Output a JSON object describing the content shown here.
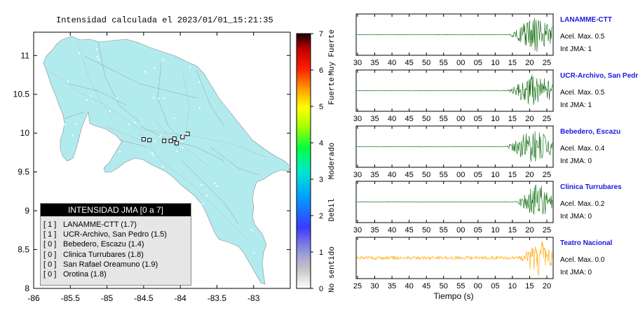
{
  "title": "Intensidad calculada el 2023/01/01_15:21:35",
  "map": {
    "x_ticks": [
      -86,
      -85.5,
      -85,
      -84.5,
      -84,
      -83.5,
      -83
    ],
    "y_ticks": [
      8,
      8.5,
      9,
      9.5,
      10,
      10.5,
      11
    ],
    "xlim": [
      -86,
      -82.5
    ],
    "ylim": [
      8,
      11.3
    ],
    "land_color": "#b1ebee",
    "station_markers": [
      [
        -84.5,
        9.92
      ],
      [
        -84.42,
        9.91
      ],
      [
        -84.13,
        9.9
      ],
      [
        -84.05,
        9.87
      ],
      [
        -83.97,
        9.95
      ],
      [
        -83.9,
        9.99
      ],
      [
        -84.08,
        9.93
      ],
      [
        -84.22,
        9.9
      ]
    ]
  },
  "legend": {
    "header": "INTENSIDAD JMA [0 a 7]",
    "items": [
      {
        "badge": "[ 1 ]",
        "text": "LANAMME-CTT (1.7)"
      },
      {
        "badge": "[ 1 ]",
        "text": "UCR-Archivo, San Pedro (1.5)"
      },
      {
        "badge": "[ 0 ]",
        "text": "Bebedero, Escazu (1.4)"
      },
      {
        "badge": "[ 0 ]",
        "text": "Clinica Turrubares (1.8)"
      },
      {
        "badge": "[ 0 ]",
        "text": "San Rafael Oreamuno (1.9)"
      },
      {
        "badge": "[ 0 ]",
        "text": "Orotina (1.8)"
      }
    ]
  },
  "colorbar": {
    "ticks": [
      "0",
      "1",
      "2",
      "3",
      "4",
      "5",
      "6",
      "7"
    ],
    "labels": [
      "No sentido",
      "Debil",
      "Moderado",
      "Fuerte",
      "Muy Fuerte"
    ]
  },
  "waveforms": {
    "xlabel": "Tiempo (s)",
    "acel_prefix": "Acel. Max.",
    "int_prefix": "Int JMA:",
    "stations": [
      {
        "name": "LANAMME-CTT",
        "acel": "0.5",
        "int": "1",
        "color": "#006400",
        "ticks": [
          "30",
          "35",
          "40",
          "45",
          "50",
          "55",
          "00",
          "05",
          "10",
          "15",
          "20",
          "25"
        ],
        "first_tick": 30,
        "span": 59,
        "onset": 0.77
      },
      {
        "name": "UCR-Archivo, San Pedro",
        "acel": "0.5",
        "int": "1",
        "color": "#006400",
        "ticks": [
          "30",
          "35",
          "40",
          "45",
          "50",
          "55",
          "00",
          "05",
          "10",
          "15",
          "20",
          "25"
        ],
        "first_tick": 30,
        "span": 59,
        "onset": 0.76
      },
      {
        "name": "Bebedero, Escazu",
        "acel": "0.4",
        "int": "0",
        "color": "#006400",
        "ticks": [
          "30",
          "35",
          "40",
          "45",
          "50",
          "55",
          "00",
          "05",
          "10",
          "15",
          "20",
          "25"
        ],
        "first_tick": 27,
        "span": 59,
        "onset": 0.75
      },
      {
        "name": "Clinica Turrubares",
        "acel": "0.2",
        "int": "0",
        "color": "#006400",
        "ticks": [
          "30",
          "35",
          "40",
          "45",
          "50",
          "55",
          "00",
          "05",
          "10",
          "15",
          "20",
          "25"
        ],
        "first_tick": 27,
        "span": 59,
        "onset": 0.8
      },
      {
        "name": "Teatro Nacional",
        "acel": "0.0",
        "int": "0",
        "color": "#ffa500",
        "ticks": [
          "25",
          "30",
          "35",
          "40",
          "45",
          "50",
          "55",
          "00",
          "05",
          "10",
          "15",
          "20"
        ],
        "first_tick": 22,
        "span": 59,
        "onset": 0.82
      }
    ]
  }
}
